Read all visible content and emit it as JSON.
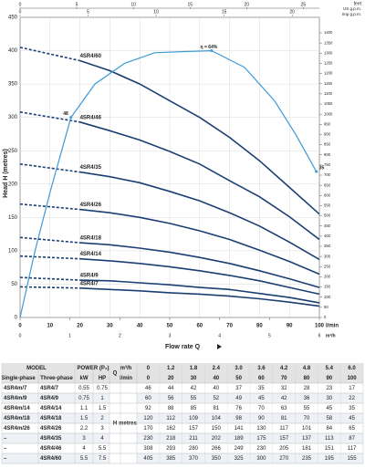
{
  "chart_data": {
    "type": "line",
    "y_label": "Head H (metres)",
    "y2_label": "feet",
    "x_label": "Flow rate Q",
    "x_unit": "l/min",
    "x": [
      0,
      20,
      30,
      40,
      50,
      60,
      70,
      80,
      90,
      100
    ],
    "xlim": [
      0,
      100
    ],
    "xticks": [
      0,
      10,
      20,
      30,
      40,
      50,
      60,
      70,
      80,
      90,
      100
    ],
    "ylim": [
      0,
      450
    ],
    "yticks": [
      0,
      50,
      100,
      150,
      200,
      250,
      300,
      350,
      400,
      450
    ],
    "y2lim": [
      0,
      1476.4
    ],
    "y2ticks": [
      0,
      50,
      100,
      150,
      200,
      250,
      300,
      350,
      400,
      450,
      500,
      550,
      600,
      650,
      700,
      750,
      800,
      850,
      900,
      950,
      1000,
      1050,
      1100,
      1150,
      1200,
      1250,
      1300,
      1350,
      1400
    ],
    "x_m3h": {
      "label": "m³/h",
      "xlim": [
        0,
        6
      ],
      "xticks": [
        0,
        1,
        2,
        3,
        4,
        5,
        6
      ]
    },
    "top_axes": [
      {
        "label": "US g.p.m.",
        "xlim": [
          0,
          26.42
        ],
        "xticks": [
          0,
          5,
          10,
          15,
          20,
          25
        ]
      },
      {
        "label": "Imp g.p.m.",
        "xlim": [
          0,
          22
        ],
        "xticks": [
          0,
          5,
          10,
          15,
          20
        ]
      }
    ],
    "grid": true,
    "dashed_to": 20,
    "series": [
      {
        "name": "4SR4/7",
        "color": "#1b3f73",
        "values": [
          46,
          44,
          42,
          40,
          37,
          35,
          32,
          28,
          23,
          17
        ]
      },
      {
        "name": "4SR4/9",
        "color": "#1b3f73",
        "values": [
          60,
          56,
          55,
          52,
          49,
          45,
          42,
          36,
          30,
          22
        ]
      },
      {
        "name": "4SR4/14",
        "color": "#1b3f73",
        "values": [
          92,
          88,
          85,
          81,
          76,
          70,
          63,
          55,
          45,
          35
        ]
      },
      {
        "name": "4SR4/18",
        "color": "#1b3f73",
        "values": [
          120,
          112,
          109,
          104,
          98,
          90,
          81,
          70,
          58,
          45
        ]
      },
      {
        "name": "4SR4/26",
        "color": "#1b3f73",
        "values": [
          170,
          162,
          157,
          150,
          141,
          130,
          117,
          101,
          84,
          65
        ]
      },
      {
        "name": "4SR4/35",
        "color": "#1b3f73",
        "values": [
          230,
          218,
          211,
          202,
          189,
          175,
          157,
          137,
          113,
          87
        ]
      },
      {
        "name": "4SR4/46",
        "color": "#1b3f73",
        "values": [
          308,
          293,
          280,
          266,
          249,
          230,
          205,
          181,
          151,
          117
        ]
      },
      {
        "name": "4SR4/60",
        "color": "#1b3f73",
        "values": [
          405,
          385,
          370,
          350,
          325,
          300,
          270,
          235,
          195,
          155
        ]
      }
    ],
    "efficiency": {
      "color": "#3d9ad6",
      "ylim": [
        0,
        72
      ],
      "x": [
        0,
        5,
        10,
        17,
        25,
        35,
        45,
        55,
        64,
        75,
        85,
        92,
        99
      ],
      "values": [
        0,
        16,
        30,
        48,
        56,
        61,
        63.5,
        63.8,
        64,
        60,
        52,
        44,
        35
      ],
      "value_labels": [
        null,
        null,
        null,
        "48",
        null,
        null,
        null,
        null,
        "η = 64%",
        null,
        null,
        null,
        "35"
      ]
    }
  },
  "table": {
    "model": "MODEL",
    "power": "POWER (P₂)",
    "single_phase": "Single-phase",
    "three_phase": "Three-phase",
    "kw": "kW",
    "hp": "HP",
    "q": "Q",
    "h": "H",
    "metres": "metres",
    "q_m3h": [
      "0",
      "1.2",
      "1.8",
      "2.4",
      "3.0",
      "3.6",
      "4.2",
      "4.8",
      "5.4",
      "6.0"
    ],
    "models": [
      {
        "single_phase": "4SR4m/7",
        "kw": "0.55",
        "hp": "0.75"
      },
      {
        "single_phase": "4SR4m/9",
        "kw": "0.75",
        "hp": "1"
      },
      {
        "single_phase": "4SR4m/14",
        "kw": "1.1",
        "hp": "1.5"
      },
      {
        "single_phase": "4SR4m/18",
        "kw": "1.5",
        "hp": "2"
      },
      {
        "single_phase": "4SR4m/26",
        "kw": "2.2",
        "hp": "3"
      },
      {
        "single_phase": "–",
        "kw": "3",
        "hp": "4"
      },
      {
        "single_phase": "–",
        "kw": "4",
        "hp": "5.5"
      },
      {
        "single_phase": "–",
        "kw": "5.5",
        "hp": "7.5"
      }
    ]
  }
}
